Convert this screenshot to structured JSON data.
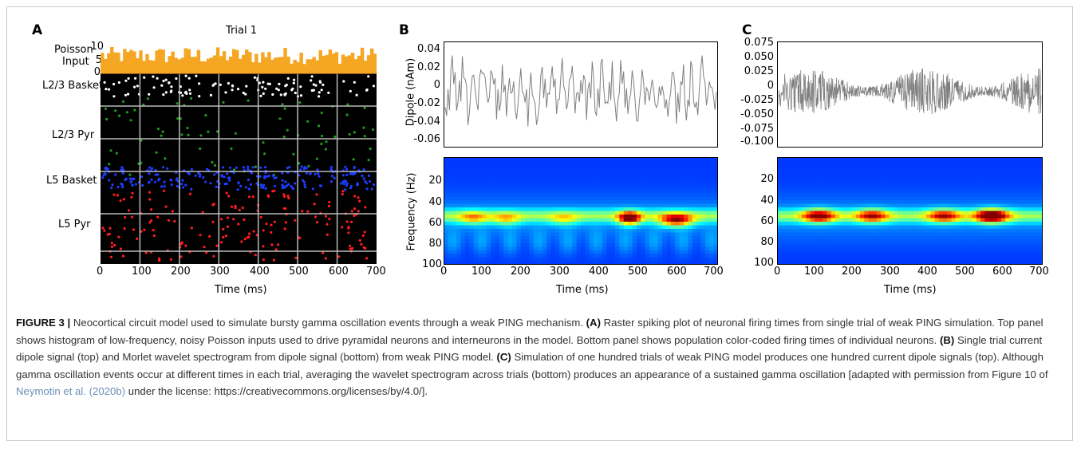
{
  "panels": {
    "a": {
      "letter": "A",
      "title": "Trial 1",
      "row_labels": {
        "poisson_1": "Poisson",
        "poisson_2": "Input",
        "l23_basket": "L2/3 Basket",
        "l23_pyr": "L2/3 Pyr",
        "l5_basket": "L5 Basket",
        "l5_pyr": "L5 Pyr"
      },
      "hist_ticks": [
        "10",
        "5",
        "0"
      ],
      "xticks": [
        "0",
        "100",
        "200",
        "300",
        "400",
        "500",
        "600",
        "700"
      ],
      "xlabel": "Time (ms)",
      "colors": {
        "histogram": "#f5a623",
        "l23_basket": "#ffffff",
        "l23_pyr": "#1f9a1f",
        "l5_basket": "#1e3cff",
        "l5_pyr": "#ff1e1e",
        "grid": "#bbbbbb"
      }
    },
    "b": {
      "letter": "B",
      "ylabel_top": "Dipole (nAm)",
      "yticks_top": [
        "0.04",
        "0.02",
        "0",
        "-0.02",
        "-0.04",
        "-0.06"
      ],
      "ylabel_bottom": "Frequency (Hz)",
      "yticks_bottom": [
        "20",
        "40",
        "60",
        "80",
        "100"
      ],
      "xticks": [
        "0",
        "100",
        "200",
        "300",
        "400",
        "500",
        "600",
        "700"
      ],
      "xlabel": "Time (ms)"
    },
    "c": {
      "letter": "C",
      "yticks_top": [
        "0.075",
        "0.050",
        "0.025",
        "0",
        "-0.025",
        "-0.050",
        "-0.075",
        "-0.100"
      ],
      "yticks_bottom": [
        "20",
        "40",
        "60",
        "80",
        "100"
      ],
      "xticks": [
        "0",
        "100",
        "200",
        "300",
        "400",
        "500",
        "600",
        "700"
      ],
      "xlabel": "Time (ms)"
    }
  },
  "caption": {
    "figure_label": "FIGURE 3 |",
    "intro": " Neocortical circuit model used to simulate bursty gamma oscillation events through a weak PING mechanism. ",
    "a_tag": "(A)",
    "a_text": " Raster spiking plot of neuronal firing times from single trial of weak PING simulation. Top panel shows histogram of low-frequency, noisy Poisson inputs used to drive pyramidal neurons and interneurons in the model. Bottom panel shows population color-coded firing times of individual neurons. ",
    "b_tag": "(B)",
    "b_text": " Single trial current dipole signal (top) and Morlet wavelet spectrogram from dipole signal (bottom) from weak PING model. ",
    "c_tag": "(C)",
    "c_text": " Simulation of one hundred trials of weak PING model produces one hundred current dipole signals (top). Although gamma oscillation events occur at different times in each trial, averaging the wavelet spectrogram across trials (bottom) produces an appearance of a sustained gamma oscillation [adapted with permission from Figure 10 of ",
    "citation": "Neymotin et al. (2020b)",
    "tail": " under the license: https://creativecommons.org/licenses/by/4.0/]."
  }
}
